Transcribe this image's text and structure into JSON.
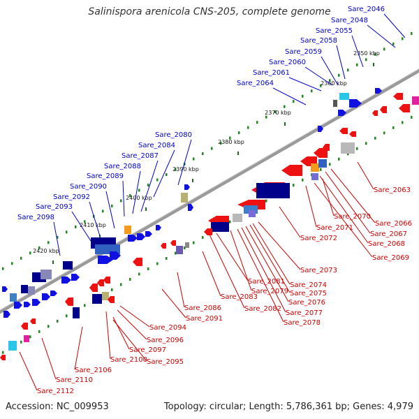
{
  "title": "Salinispora arenicola CNS-205, complete genome",
  "accession": "Accession: NC_009953",
  "summary": "Topology: circular; Length: 5,786,361 bp; Genes: 4,979",
  "colors": {
    "forward_gene": "#1010e0",
    "reverse_gene": "#ee1111",
    "label_forward": "#0000cc",
    "label_reverse": "#cc0000",
    "backbone": "#8a8a8a",
    "dots": "#228822",
    "cds_dark": "#00008b",
    "other_gene_orange": "#f49a1c",
    "other_gene_cyan": "#29c6e8",
    "other_gene_magenta": "#e020a0",
    "other_gene_gray": "#b8b8b8",
    "other_gene_olive": "#b8b070"
  },
  "ticks": [
    "2350 kbp",
    "2360 kbp",
    "2370 kbp",
    "2380 kbp",
    "2390 kbp",
    "2400 kbp",
    "2410 kbp",
    "2420 kbp"
  ],
  "forward_labels": [
    "Sare_2046",
    "Sare_2048",
    "Sare_2055",
    "Sare_2058",
    "Sare_2059",
    "Sare_2060",
    "Sare_2061",
    "Sare_2064",
    "Sare_2080",
    "Sare_2084",
    "Sare_2087",
    "Sare_2088",
    "Sare_2089",
    "Sare_2090",
    "Sare_2092",
    "Sare_2093",
    "Sare_2098"
  ],
  "reverse_labels": [
    "Sare_2063",
    "Sare_2066",
    "Sare_2067",
    "Sare_2068",
    "Sare_2069",
    "Sare_2070",
    "Sare_2071",
    "Sare_2072",
    "Sare_2073",
    "Sare_2074",
    "Sare_2075",
    "Sare_2076",
    "Sare_2077",
    "Sare_2078",
    "Sare_2079",
    "Sare_2081",
    "Sare_2082",
    "Sare_2083",
    "Sare_2086",
    "Sare_2091",
    "Sare_2094",
    "Sare_2095",
    "Sare_2096",
    "Sare_2097",
    "Sare_2100",
    "Sare_2106",
    "Sare_2110",
    "Sare_2112"
  ]
}
